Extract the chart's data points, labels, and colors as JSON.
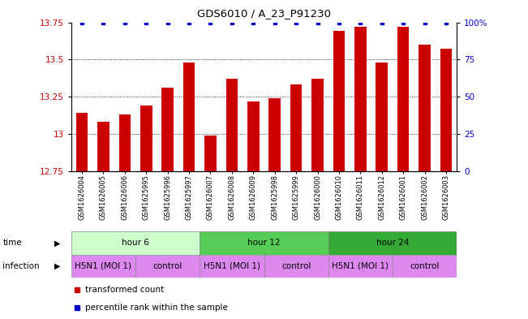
{
  "title": "GDS6010 / A_23_P91230",
  "samples": [
    "GSM1626004",
    "GSM1626005",
    "GSM1626006",
    "GSM1625995",
    "GSM1625996",
    "GSM1625997",
    "GSM1626007",
    "GSM1626008",
    "GSM1626009",
    "GSM1625998",
    "GSM1625999",
    "GSM1626000",
    "GSM1626010",
    "GSM1626011",
    "GSM1626012",
    "GSM1626001",
    "GSM1626002",
    "GSM1626003"
  ],
  "bar_values": [
    13.14,
    13.08,
    13.13,
    13.19,
    13.31,
    13.48,
    12.99,
    13.37,
    13.22,
    13.24,
    13.33,
    13.37,
    13.69,
    13.72,
    13.48,
    13.72,
    13.6,
    13.57
  ],
  "percentile_values": [
    100,
    100,
    100,
    100,
    100,
    100,
    100,
    100,
    100,
    100,
    100,
    100,
    100,
    100,
    100,
    100,
    100,
    100
  ],
  "bar_color": "#cc0000",
  "percentile_color": "#0000cc",
  "ymin": 12.75,
  "ymax": 13.75,
  "yticks": [
    12.75,
    13.0,
    13.25,
    13.5,
    13.75
  ],
  "ytick_labels": [
    "12.75",
    "13",
    "13.25",
    "13.5",
    "13.75"
  ],
  "y2min": 0,
  "y2max": 100,
  "y2ticks": [
    0,
    25,
    50,
    75,
    100
  ],
  "y2tick_labels": [
    "0",
    "25",
    "50",
    "75",
    "100%"
  ],
  "time_groups": [
    {
      "label": "hour 6",
      "start": 0,
      "end": 6,
      "color": "#ccffcc"
    },
    {
      "label": "hour 12",
      "start": 6,
      "end": 12,
      "color": "#55cc55"
    },
    {
      "label": "hour 24",
      "start": 12,
      "end": 18,
      "color": "#33aa33"
    }
  ],
  "infection_groups": [
    {
      "label": "H5N1 (MOI 1)",
      "start": 0,
      "end": 3,
      "color": "#dd88ee"
    },
    {
      "label": "control",
      "start": 3,
      "end": 6,
      "color": "#dd88ee"
    },
    {
      "label": "H5N1 (MOI 1)",
      "start": 6,
      "end": 9,
      "color": "#dd88ee"
    },
    {
      "label": "control",
      "start": 9,
      "end": 12,
      "color": "#dd88ee"
    },
    {
      "label": "H5N1 (MOI 1)",
      "start": 12,
      "end": 15,
      "color": "#dd88ee"
    },
    {
      "label": "control",
      "start": 15,
      "end": 18,
      "color": "#dd88ee"
    }
  ],
  "time_row_label": "time",
  "infection_row_label": "infection",
  "legend_entries": [
    "transformed count",
    "percentile rank within the sample"
  ],
  "legend_colors": [
    "#cc0000",
    "#0000cc"
  ]
}
